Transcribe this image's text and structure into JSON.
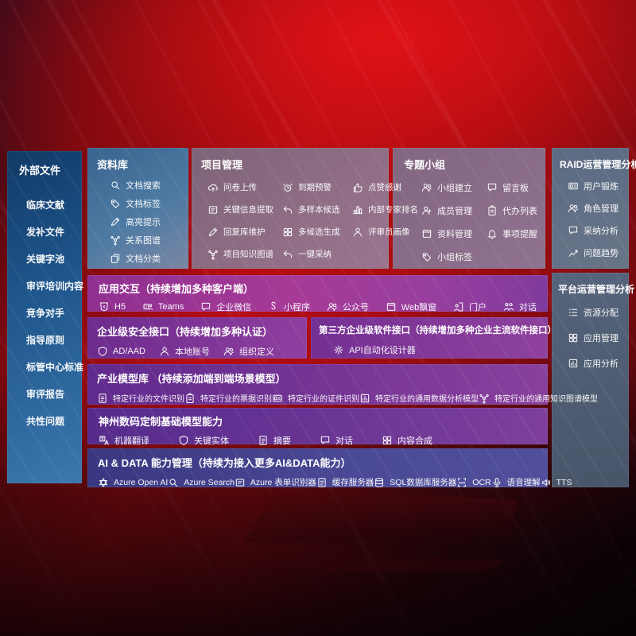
{
  "colors": {
    "background_red": "#b10d12",
    "sidebar_blue": "#2d6aa3",
    "panel_mauve": "#8e6d84",
    "panel_slate": "#5f6d84",
    "row_magenta": "#a23a97",
    "row_purple": "#6f2f93",
    "row_indigo": "#403d88",
    "text": "#ffffff"
  },
  "sidebar": {
    "title": "外部文件",
    "items": [
      {
        "label": "临床文献"
      },
      {
        "label": "发补文件"
      },
      {
        "label": "关键字池"
      },
      {
        "label": "审评培训内容"
      },
      {
        "label": "竞争对手"
      },
      {
        "label": "指导原则"
      },
      {
        "label": "标管中心标准"
      },
      {
        "label": "审评报告"
      },
      {
        "label": "共性问题"
      }
    ]
  },
  "panels": {
    "library": {
      "title": "资料库",
      "items": [
        {
          "label": "文档搜索",
          "icon": "search"
        },
        {
          "label": "文档标签",
          "icon": "tag"
        },
        {
          "label": "高亮提示",
          "icon": "pen"
        },
        {
          "label": "关系图谱",
          "icon": "graph"
        },
        {
          "label": "文档分类",
          "icon": "copy"
        }
      ]
    },
    "project": {
      "title": "项目管理",
      "items": [
        {
          "label": "问卷上传",
          "icon": "cloud"
        },
        {
          "label": "到期预警",
          "icon": "alarm"
        },
        {
          "label": "点赞感谢",
          "icon": "thumb"
        },
        {
          "label": "关键信息提取",
          "icon": "extract"
        },
        {
          "label": "多样本候选",
          "icon": "reply"
        },
        {
          "label": "内部专家排名",
          "icon": "rank"
        },
        {
          "label": "回复库维护",
          "icon": "pen"
        },
        {
          "label": "多候选生成",
          "icon": "grid"
        },
        {
          "label": "评审员画像",
          "icon": "person"
        },
        {
          "label": "项目知识图谱",
          "icon": "graph"
        },
        {
          "label": "一键采纳",
          "icon": "reply"
        }
      ]
    },
    "group": {
      "title": "专题小组",
      "items": [
        {
          "label": "小组建立",
          "icon": "people"
        },
        {
          "label": "留言板",
          "icon": "chat"
        },
        {
          "label": "成员管理",
          "icon": "personplus"
        },
        {
          "label": "代办列表",
          "icon": "clipboard"
        },
        {
          "label": "资料管理",
          "icon": "window"
        },
        {
          "label": "事项提醒",
          "icon": "bell"
        },
        {
          "label": "小组标签",
          "icon": "tag"
        }
      ]
    },
    "raid": {
      "title": "RAID运营管理分析",
      "items": [
        {
          "label": "用户锻炼",
          "icon": "idcard"
        },
        {
          "label": "角色管理",
          "icon": "people"
        },
        {
          "label": "采纳分析",
          "icon": "chat"
        },
        {
          "label": "问题趋势",
          "icon": "trend"
        }
      ]
    },
    "platform": {
      "title": "平台运营管理分析",
      "items": [
        {
          "label": "资源分配",
          "icon": "list"
        },
        {
          "label": "应用管理",
          "icon": "grid"
        },
        {
          "label": "应用分析",
          "icon": "chartbox"
        }
      ]
    },
    "interaction": {
      "title": "应用交互（持续增加多种客户端）",
      "items": [
        {
          "label": "H5",
          "icon": "h5"
        },
        {
          "label": "Teams",
          "icon": "teams"
        },
        {
          "label": "企业微信",
          "icon": "chat"
        },
        {
          "label": "小程序",
          "icon": "scurve"
        },
        {
          "label": "公众号",
          "icon": "people"
        },
        {
          "label": "Web飘窗",
          "icon": "window"
        },
        {
          "label": "门户",
          "icon": "door"
        },
        {
          "label": "对话",
          "icon": "dialog"
        }
      ]
    },
    "security": {
      "title": "企业级安全接口（持续增加多种认证）",
      "items": [
        {
          "label": "AD/AAD",
          "icon": "shield"
        },
        {
          "label": "本地账号",
          "icon": "person"
        },
        {
          "label": "组织定义",
          "icon": "people"
        }
      ]
    },
    "thirdparty": {
      "title": "第三方企业级软件接口（持续增加多种企业主流软件接口）",
      "items": [
        {
          "label": "API自动化设计器",
          "icon": "gear"
        }
      ]
    },
    "industry": {
      "title": "产业模型库 （持续添加端到端场景模型）",
      "items": [
        {
          "label": "特定行业的文件识别",
          "icon": "doc"
        },
        {
          "label": "特定行业的票据识别",
          "icon": "clipboard"
        },
        {
          "label": "特定行业的证件识别",
          "icon": "idcard"
        },
        {
          "label": "特定行业的通用数据分析模型",
          "icon": "chartbox"
        },
        {
          "label": "特定行业的通用知识图谱模型",
          "icon": "graph"
        }
      ]
    },
    "dcits": {
      "title": "神州数码定制基础模型能力",
      "items": [
        {
          "label": "机器翻译",
          "icon": "translate"
        },
        {
          "label": "关键实体",
          "icon": "shield"
        },
        {
          "label": "摘要",
          "icon": "doc"
        },
        {
          "label": "对话",
          "icon": "chat"
        },
        {
          "label": "内容合成",
          "icon": "grid"
        }
      ]
    },
    "aidata": {
      "title": "AI & DATA 能力管理（持续为接入更多AI&DATA能力）",
      "items": [
        {
          "label": "Azure Open AI",
          "icon": "openai"
        },
        {
          "label": "Azure Search",
          "icon": "search"
        },
        {
          "label": "Azure 表单识别器",
          "icon": "extract"
        },
        {
          "label": "缓存服务器",
          "icon": "doc"
        },
        {
          "label": "SQL数据库服务器",
          "icon": "db"
        },
        {
          "label": "OCR",
          "icon": "ocr"
        },
        {
          "label": "语音理解",
          "icon": "speech"
        },
        {
          "label": "TTS",
          "icon": "tts"
        }
      ]
    }
  }
}
